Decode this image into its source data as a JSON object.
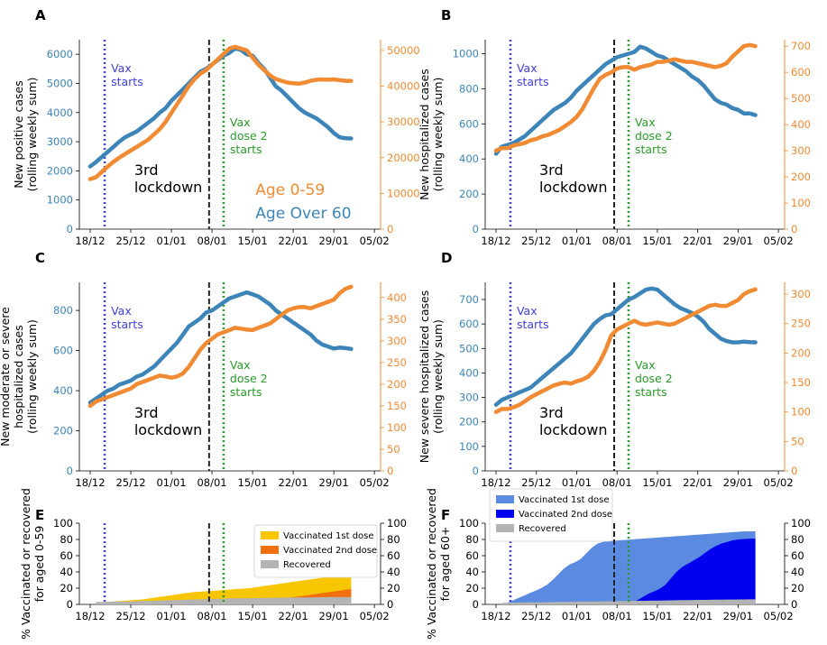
{
  "colors": {
    "older": "#3d85b8",
    "younger": "#f08a33",
    "vax_line": "#4040e0",
    "dose2_line": "#2a9a2a",
    "lockdown_line": "#222222",
    "e_first": "#f7c600",
    "e_second": "#f26f10",
    "f_first": "#5a8be0",
    "f_second": "#0000ee",
    "recovered": "#b4b4b4"
  },
  "x_ticks": [
    "18/12",
    "25/12",
    "01/01",
    "08/01",
    "15/01",
    "22/01",
    "29/01",
    "05/02"
  ],
  "events": {
    "vax_start_day": 2.5,
    "lockdown_day": 20.5,
    "dose2_day": 23.0,
    "vax_label": "Vax\nstarts",
    "dose2_label": "Vax\ndose 2\nstarts",
    "lockdown_label": "3rd\nlockdown"
  },
  "legend_ab": {
    "younger": "Age 0-59",
    "older": "Age Over 60"
  },
  "chart_data": [
    {
      "id": "A",
      "type": "line",
      "letter": "A",
      "ylabel_left": "New positive cases\n(rolling weekly sum)",
      "ylim_left": [
        0,
        6500
      ],
      "yticks_left": [
        0,
        1000,
        2000,
        3000,
        4000,
        5000,
        6000
      ],
      "ylim_right": [
        0,
        53000
      ],
      "yticks_right": [
        0,
        10000,
        20000,
        30000,
        40000,
        50000
      ],
      "series": [
        {
          "name": "Age Over 60",
          "axis": "left",
          "values": [
            2150,
            2300,
            2480,
            2650,
            2820,
            3000,
            3150,
            3250,
            3350,
            3500,
            3650,
            3800,
            4000,
            4150,
            4400,
            4600,
            4800,
            5000,
            5200,
            5400,
            5500,
            5650,
            5800,
            5950,
            6050,
            6200,
            6150,
            6000,
            5950,
            5700,
            5500,
            5200,
            4900,
            4750,
            4550,
            4350,
            4150,
            4000,
            3900,
            3800,
            3650,
            3500,
            3300,
            3150,
            3120,
            3110
          ]
        },
        {
          "name": "Age 0-59",
          "axis": "right",
          "values": [
            14000,
            14500,
            16000,
            17500,
            18800,
            20000,
            21000,
            22000,
            23000,
            24000,
            25000,
            26500,
            28000,
            30000,
            32500,
            35000,
            37500,
            40000,
            42000,
            43500,
            44500,
            46000,
            47500,
            49000,
            50500,
            51000,
            50500,
            50000,
            48000,
            46000,
            44500,
            43000,
            42000,
            41500,
            41000,
            40800,
            40700,
            41000,
            41500,
            41800,
            41900,
            41800,
            41900,
            41700,
            41500,
            41500
          ]
        }
      ]
    },
    {
      "id": "B",
      "type": "line",
      "letter": "B",
      "ylabel_left": "New hospitalized cases\n(rolling weekly sum)",
      "ylim_left": [
        0,
        1080
      ],
      "yticks_left": [
        0,
        200,
        400,
        600,
        800,
        1000
      ],
      "ylim_right": [
        0,
        725
      ],
      "yticks_right": [
        0,
        100,
        200,
        300,
        400,
        500,
        600,
        700
      ],
      "series": [
        {
          "name": "Age Over 60",
          "axis": "left",
          "values": [
            430,
            470,
            480,
            490,
            510,
            530,
            560,
            590,
            620,
            650,
            680,
            700,
            720,
            750,
            790,
            820,
            850,
            880,
            910,
            940,
            960,
            980,
            990,
            1000,
            1010,
            1040,
            1030,
            1010,
            990,
            980,
            960,
            940,
            920,
            900,
            870,
            850,
            820,
            780,
            740,
            720,
            710,
            690,
            680,
            660,
            660,
            650
          ]
        },
        {
          "name": "Age 0-59",
          "axis": "right",
          "values": [
            300,
            310,
            310,
            320,
            325,
            330,
            340,
            345,
            355,
            360,
            370,
            380,
            395,
            410,
            430,
            460,
            500,
            540,
            575,
            590,
            600,
            615,
            620,
            620,
            610,
            620,
            625,
            630,
            640,
            640,
            645,
            650,
            645,
            640,
            640,
            635,
            630,
            625,
            620,
            625,
            635,
            660,
            680,
            700,
            705,
            700
          ]
        }
      ]
    },
    {
      "id": "C",
      "type": "line",
      "letter": "C",
      "ylabel_left": "New moderate or severe\nhospitalized cases\n(rolling weekly sum)",
      "ylim_left": [
        0,
        940
      ],
      "yticks_left": [
        0,
        200,
        400,
        600,
        800
      ],
      "ylim_right": [
        0,
        435
      ],
      "yticks_right": [
        0,
        50,
        100,
        150,
        200,
        250,
        300,
        350,
        400
      ],
      "series": [
        {
          "name": "Age Over 60",
          "axis": "left",
          "values": [
            340,
            360,
            380,
            400,
            410,
            430,
            440,
            450,
            470,
            480,
            500,
            520,
            550,
            580,
            610,
            640,
            680,
            720,
            740,
            760,
            790,
            800,
            820,
            840,
            860,
            870,
            880,
            890,
            880,
            870,
            850,
            830,
            800,
            780,
            760,
            740,
            720,
            700,
            680,
            650,
            630,
            620,
            610,
            615,
            612,
            608
          ]
        },
        {
          "name": "Age 0-59",
          "axis": "right",
          "values": [
            150,
            160,
            165,
            170,
            175,
            180,
            185,
            190,
            200,
            205,
            210,
            215,
            220,
            218,
            215,
            218,
            225,
            240,
            260,
            280,
            295,
            305,
            315,
            320,
            325,
            330,
            328,
            326,
            325,
            330,
            335,
            340,
            350,
            360,
            370,
            375,
            378,
            378,
            375,
            380,
            385,
            390,
            395,
            410,
            420,
            425
          ]
        }
      ]
    },
    {
      "id": "D",
      "type": "line",
      "letter": "D",
      "ylabel_left": "New severe hospitalized cases\n(rolling weekly sum)",
      "ylim_left": [
        0,
        770
      ],
      "yticks_left": [
        0,
        100,
        200,
        300,
        400,
        500,
        600,
        700
      ],
      "ylim_right": [
        0,
        320
      ],
      "yticks_right": [
        0,
        50,
        100,
        150,
        200,
        250,
        300
      ],
      "series": [
        {
          "name": "Age Over 60",
          "axis": "left",
          "values": [
            270,
            290,
            300,
            310,
            320,
            330,
            340,
            360,
            380,
            400,
            420,
            440,
            460,
            480,
            510,
            540,
            570,
            600,
            620,
            635,
            640,
            660,
            680,
            700,
            710,
            725,
            740,
            745,
            740,
            720,
            700,
            680,
            665,
            655,
            645,
            630,
            610,
            580,
            560,
            540,
            530,
            525,
            525,
            528,
            526,
            525
          ]
        },
        {
          "name": "Age 0-59",
          "axis": "right",
          "values": [
            100,
            105,
            105,
            108,
            112,
            118,
            125,
            130,
            135,
            140,
            145,
            148,
            150,
            148,
            152,
            155,
            160,
            170,
            185,
            205,
            230,
            240,
            245,
            250,
            255,
            250,
            248,
            250,
            252,
            250,
            248,
            250,
            255,
            260,
            265,
            270,
            275,
            280,
            282,
            280,
            280,
            285,
            290,
            300,
            305,
            308
          ]
        }
      ]
    },
    {
      "id": "E",
      "type": "area",
      "letter": "E",
      "ylabel_left": "% Vaccinated or recovered\nfor aged 0-59",
      "ylim": [
        0,
        100
      ],
      "yticks": [
        0,
        20,
        40,
        60,
        80,
        100
      ],
      "legend": [
        "Vaccinated 1st dose",
        "Vaccinated 2nd dose",
        "Recovered"
      ],
      "series": [
        {
          "name": "Vaccinated 1st dose",
          "values": [
            2,
            2.5,
            3,
            3.5,
            4,
            4.5,
            5,
            5.5,
            6,
            7,
            8,
            9,
            10,
            11,
            12,
            13,
            14,
            15,
            15.5,
            16,
            16.5,
            17,
            17.5,
            18,
            18.5,
            19,
            19.5,
            20,
            21,
            22,
            23,
            24,
            25,
            26,
            27,
            28,
            29,
            30,
            31,
            32,
            33,
            34,
            35,
            36,
            36.5,
            37
          ]
        },
        {
          "name": "Vaccinated 2nd dose",
          "values": [
            0,
            0,
            0,
            0,
            0,
            0,
            0,
            0,
            0,
            0,
            0,
            0,
            0,
            0,
            0,
            0,
            0,
            0,
            0,
            0,
            0,
            0,
            0,
            0.5,
            1,
            1.5,
            2,
            2.5,
            3,
            3.5,
            4,
            5,
            6,
            7,
            8,
            9,
            10,
            11,
            12,
            13,
            14,
            15,
            16,
            17,
            18,
            19
          ]
        },
        {
          "name": "Recovered",
          "values": [
            3,
            3,
            3.2,
            3.3,
            3.4,
            3.5,
            3.7,
            3.9,
            4.1,
            4.3,
            4.5,
            4.7,
            5,
            5.2,
            5.4,
            5.6,
            5.8,
            6,
            6.2,
            6.4,
            6.6,
            6.8,
            7,
            7.2,
            7.4,
            7.5,
            7.6,
            7.7,
            7.8,
            7.9,
            8,
            8.1,
            8.2,
            8.3,
            8.4,
            8.5,
            8.6,
            8.7,
            8.8,
            8.9,
            9,
            9,
            9.1,
            9.1,
            9.2,
            9.2
          ]
        }
      ]
    },
    {
      "id": "F",
      "type": "area",
      "letter": "F",
      "ylabel_left": "% Vaccinated or recovered\nfor aged 60+",
      "ylim": [
        0,
        100
      ],
      "yticks": [
        0,
        20,
        40,
        60,
        80,
        100
      ],
      "legend": [
        "Vaccinated 1st dose",
        "Vaccinated 2nd dose",
        "Recovered"
      ],
      "series": [
        {
          "name": "Vaccinated 1st dose",
          "values": [
            0,
            2,
            5,
            8,
            11,
            14,
            17,
            20,
            24,
            30,
            37,
            44,
            49,
            52,
            56,
            63,
            70,
            75,
            77,
            78,
            78.5,
            79,
            79.5,
            80,
            80.5,
            81,
            81.5,
            82,
            82.5,
            83,
            83.5,
            84,
            84.5,
            85,
            85.5,
            86,
            86.5,
            87,
            87.5,
            88,
            88.5,
            89,
            89.5,
            90,
            90,
            90
          ]
        },
        {
          "name": "Vaccinated 2nd dose",
          "values": [
            0,
            0,
            0,
            0,
            0,
            0,
            0,
            0,
            0,
            0,
            0,
            0,
            0,
            0,
            0,
            0,
            0,
            0,
            0,
            0,
            0,
            0,
            0,
            2,
            5,
            9,
            13,
            16,
            19,
            24,
            32,
            40,
            46,
            50,
            54,
            58,
            63,
            68,
            72,
            75,
            77,
            79,
            80,
            80.5,
            81,
            81
          ]
        },
        {
          "name": "Recovered",
          "values": [
            2,
            2.1,
            2.2,
            2.3,
            2.4,
            2.5,
            2.6,
            2.7,
            2.8,
            2.9,
            3,
            3.1,
            3.2,
            3.3,
            3.4,
            3.5,
            3.6,
            3.7,
            3.8,
            3.9,
            4,
            4.1,
            4.2,
            4.3,
            4.4,
            4.5,
            4.6,
            4.7,
            4.8,
            4.9,
            5,
            5.1,
            5.2,
            5.3,
            5.4,
            5.5,
            5.6,
            5.7,
            5.8,
            5.9,
            6,
            6,
            6.1,
            6.1,
            6.2,
            6.2
          ]
        }
      ]
    }
  ]
}
